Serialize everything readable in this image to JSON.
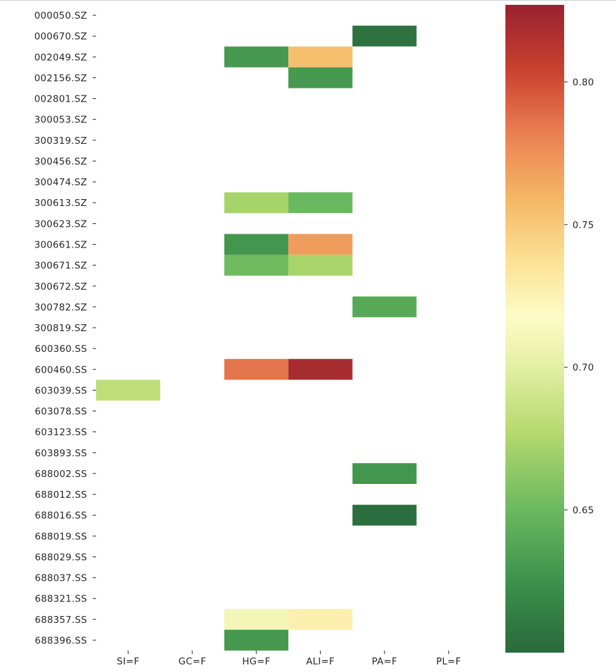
{
  "chart_data": {
    "type": "heatmap",
    "rows": [
      "000050.SZ",
      "000670.SZ",
      "002049.SZ",
      "002156.SZ",
      "002801.SZ",
      "300053.SZ",
      "300319.SZ",
      "300456.SZ",
      "300474.SZ",
      "300613.SZ",
      "300623.SZ",
      "300661.SZ",
      "300671.SZ",
      "300672.SZ",
      "300782.SZ",
      "300819.SZ",
      "600360.SS",
      "600460.SS",
      "603039.SS",
      "603078.SS",
      "603123.SS",
      "603893.SS",
      "688002.SS",
      "688012.SS",
      "688016.SS",
      "688019.SS",
      "688029.SS",
      "688037.SS",
      "688321.SS",
      "688357.SS",
      "688396.SS"
    ],
    "columns": [
      "SI=F",
      "GC=F",
      "HG=F",
      "ALI=F",
      "PA=F",
      "PL=F"
    ],
    "cells": [
      {
        "row": "000670.SZ",
        "col": "PA=F",
        "value": 0.605
      },
      {
        "row": "002049.SZ",
        "col": "HG=F",
        "value": 0.63
      },
      {
        "row": "002049.SZ",
        "col": "ALI=F",
        "value": 0.755
      },
      {
        "row": "002156.SZ",
        "col": "ALI=F",
        "value": 0.63
      },
      {
        "row": "300613.SZ",
        "col": "HG=F",
        "value": 0.672
      },
      {
        "row": "300613.SZ",
        "col": "ALI=F",
        "value": 0.65
      },
      {
        "row": "300661.SZ",
        "col": "HG=F",
        "value": 0.628
      },
      {
        "row": "300661.SZ",
        "col": "ALI=F",
        "value": 0.77
      },
      {
        "row": "300671.SZ",
        "col": "HG=F",
        "value": 0.652
      },
      {
        "row": "300671.SZ",
        "col": "ALI=F",
        "value": 0.673
      },
      {
        "row": "300782.SZ",
        "col": "PA=F",
        "value": 0.64
      },
      {
        "row": "600460.SS",
        "col": "HG=F",
        "value": 0.786
      },
      {
        "row": "600460.SS",
        "col": "ALI=F",
        "value": 0.82
      },
      {
        "row": "603039.SS",
        "col": "SI=F",
        "value": 0.682
      },
      {
        "row": "688002.SS",
        "col": "PA=F",
        "value": 0.628
      },
      {
        "row": "688016.SS",
        "col": "PA=F",
        "value": 0.603
      },
      {
        "row": "688357.SS",
        "col": "HG=F",
        "value": 0.71
      },
      {
        "row": "688357.SS",
        "col": "ALI=F",
        "value": 0.728
      },
      {
        "row": "688396.SS",
        "col": "HG=F",
        "value": 0.63
      }
    ],
    "colorbar": {
      "colormap": "RdYlGn_r",
      "range": [
        0.6,
        0.827
      ],
      "ticks": [
        0.65,
        0.7,
        0.75,
        0.8
      ],
      "tick_labels": [
        "0.65",
        "0.70",
        "0.75",
        "0.80"
      ]
    },
    "missing_cells": "blank (white)",
    "title": "",
    "xlabel": "",
    "ylabel": ""
  }
}
